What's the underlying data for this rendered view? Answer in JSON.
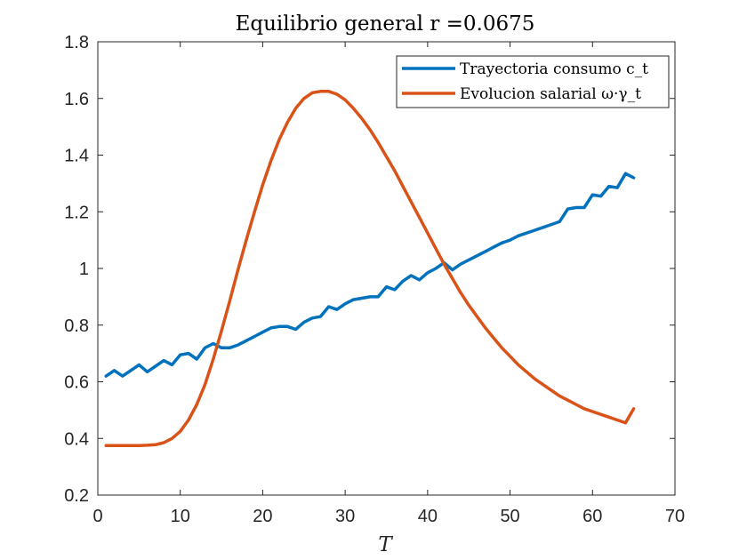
{
  "chart_data": {
    "type": "line",
    "title": "Equilibrio general r =0.0675",
    "xlabel": "T",
    "ylabel": "",
    "xlim": [
      0,
      70
    ],
    "ylim": [
      0.2,
      1.8
    ],
    "xticks": [
      0,
      10,
      20,
      30,
      40,
      50,
      60,
      70
    ],
    "yticks": [
      0.2,
      0.4,
      0.6,
      0.8,
      1,
      1.2,
      1.4,
      1.6,
      1.8
    ],
    "xtick_labels": [
      "0",
      "10",
      "20",
      "30",
      "40",
      "50",
      "60",
      "70"
    ],
    "ytick_labels": [
      "0.2",
      "0.4",
      "0.6",
      "0.8",
      "1",
      "1.2",
      "1.4",
      "1.6",
      "1.8"
    ],
    "grid": false,
    "legend_position": "top-right",
    "series": [
      {
        "name": "Trayectoria consumo c_t",
        "color": "#0072BD",
        "x": [
          1,
          2,
          3,
          4,
          5,
          6,
          7,
          8,
          9,
          10,
          11,
          12,
          13,
          14,
          15,
          16,
          17,
          18,
          19,
          20,
          21,
          22,
          23,
          24,
          25,
          26,
          27,
          28,
          29,
          30,
          31,
          32,
          33,
          34,
          35,
          36,
          37,
          38,
          39,
          40,
          41,
          42,
          43,
          44,
          45,
          46,
          47,
          48,
          49,
          50,
          51,
          52,
          53,
          54,
          55,
          56,
          57,
          58,
          59,
          60,
          61,
          62,
          63,
          64,
          65
        ],
        "y": [
          0.62,
          0.64,
          0.62,
          0.64,
          0.66,
          0.635,
          0.655,
          0.675,
          0.66,
          0.695,
          0.7,
          0.68,
          0.72,
          0.735,
          0.72,
          0.72,
          0.73,
          0.745,
          0.76,
          0.775,
          0.79,
          0.795,
          0.795,
          0.785,
          0.81,
          0.825,
          0.83,
          0.865,
          0.855,
          0.875,
          0.89,
          0.895,
          0.9,
          0.9,
          0.935,
          0.925,
          0.955,
          0.975,
          0.96,
          0.985,
          1.0,
          1.02,
          0.995,
          1.015,
          1.03,
          1.045,
          1.06,
          1.075,
          1.09,
          1.1,
          1.115,
          1.125,
          1.135,
          1.145,
          1.155,
          1.165,
          1.21,
          1.215,
          1.215,
          1.26,
          1.255,
          1.29,
          1.285,
          1.335,
          1.32
        ]
      },
      {
        "name": "Evolucion salarial ω·γ_t",
        "color": "#D95319",
        "x": [
          1,
          2,
          3,
          4,
          5,
          6,
          7,
          8,
          9,
          10,
          11,
          12,
          13,
          14,
          15,
          16,
          17,
          18,
          19,
          20,
          21,
          22,
          23,
          24,
          25,
          26,
          27,
          28,
          29,
          30,
          31,
          32,
          33,
          34,
          35,
          36,
          37,
          38,
          39,
          40,
          41,
          42,
          43,
          44,
          45,
          46,
          47,
          48,
          49,
          50,
          51,
          52,
          53,
          54,
          55,
          56,
          57,
          58,
          59,
          60,
          61,
          62,
          63,
          64,
          65
        ],
        "y": [
          0.375,
          0.375,
          0.375,
          0.375,
          0.375,
          0.376,
          0.378,
          0.385,
          0.4,
          0.425,
          0.465,
          0.52,
          0.59,
          0.68,
          0.78,
          0.885,
          0.995,
          1.1,
          1.2,
          1.295,
          1.38,
          1.455,
          1.515,
          1.565,
          1.6,
          1.62,
          1.625,
          1.625,
          1.615,
          1.595,
          1.565,
          1.53,
          1.49,
          1.445,
          1.395,
          1.345,
          1.29,
          1.235,
          1.18,
          1.125,
          1.07,
          1.015,
          0.965,
          0.915,
          0.87,
          0.83,
          0.79,
          0.755,
          0.72,
          0.69,
          0.66,
          0.635,
          0.61,
          0.59,
          0.57,
          0.55,
          0.535,
          0.52,
          0.505,
          0.495,
          0.485,
          0.475,
          0.465,
          0.455,
          0.505
        ]
      }
    ]
  }
}
